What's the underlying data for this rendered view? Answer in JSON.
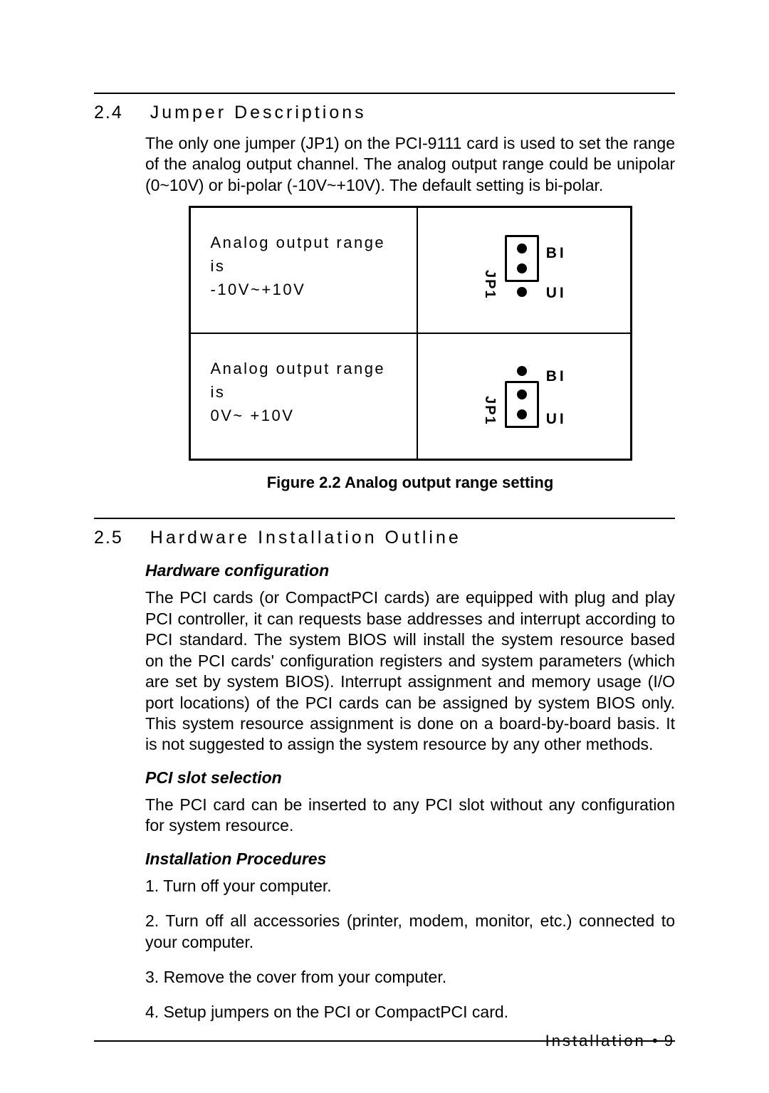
{
  "section24": {
    "num": "2.4",
    "title": "Jumper Descriptions",
    "para": "The only one jumper (JP1) on the PCI-9111 card is used to set the range of the analog output channel.  The analog output range could be unipolar (0~10V) or bi-polar (-10V~+10V).  The default setting is bi-polar."
  },
  "table": {
    "row1_desc_l1": "Analog output range is",
    "row1_desc_l2": "-10V~+10V",
    "row2_desc_l1": "Analog output range is",
    "row2_desc_l2": "0V~ +10V",
    "jp_label": "JP1",
    "bi": "BI",
    "ui": "UI",
    "caption": "Figure 2.2  Analog output range setting"
  },
  "section25": {
    "num": "2.5",
    "title": "Hardware Installation Outline",
    "sub1": "Hardware configuration",
    "para1": "The PCI cards (or CompactPCI cards) are equipped with plug and play PCI controller, it can requests base addresses and interrupt according to PCI standard. The system BIOS will install the system resource based on the PCI cards'  configuration registers and system parameters (which are set by system BIOS).  Interrupt assignment and memory usage (I/O port locations) of the PCI cards can be assigned by system BIOS only. This system resource assignment is done on a board-by-board basis.  It is not suggested to assign the system resource by any other methods.",
    "sub2": "PCI slot selection",
    "para2": "The PCI card can be inserted to any PCI slot without any configuration for system resource.",
    "sub3": "Installation Procedures",
    "steps": [
      "1. Turn off your computer.",
      "2. Turn off all accessories (printer, modem, monitor, etc.) connected to your computer.",
      "3. Remove the cover from your computer.",
      "4. Setup jumpers on the PCI or CompactPCI card."
    ]
  },
  "footer": {
    "chapter": "Installation",
    "sep": "•",
    "page": "9"
  }
}
